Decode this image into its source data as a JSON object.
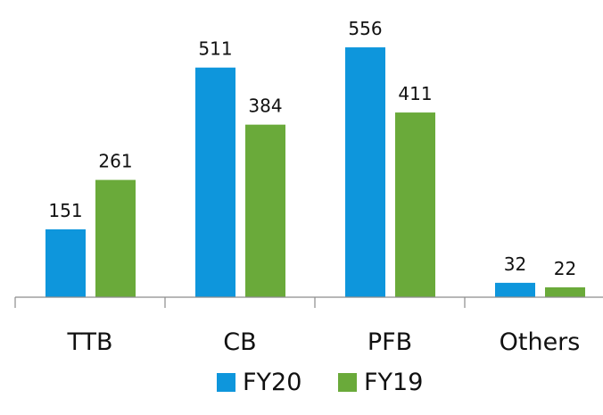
{
  "chart_data": {
    "type": "bar",
    "categories": [
      "TTB",
      "CB",
      "PFB",
      "Others"
    ],
    "series": [
      {
        "name": "FY20",
        "color": "#0E96DC",
        "values": [
          151,
          511,
          556,
          32
        ]
      },
      {
        "name": "FY19",
        "color": "#6AAA3A",
        "values": [
          261,
          384,
          411,
          22
        ]
      }
    ],
    "title": "",
    "xlabel": "",
    "ylabel": "",
    "ylim": [
      0,
      600
    ],
    "grid": false,
    "legend_position": "bottom"
  }
}
